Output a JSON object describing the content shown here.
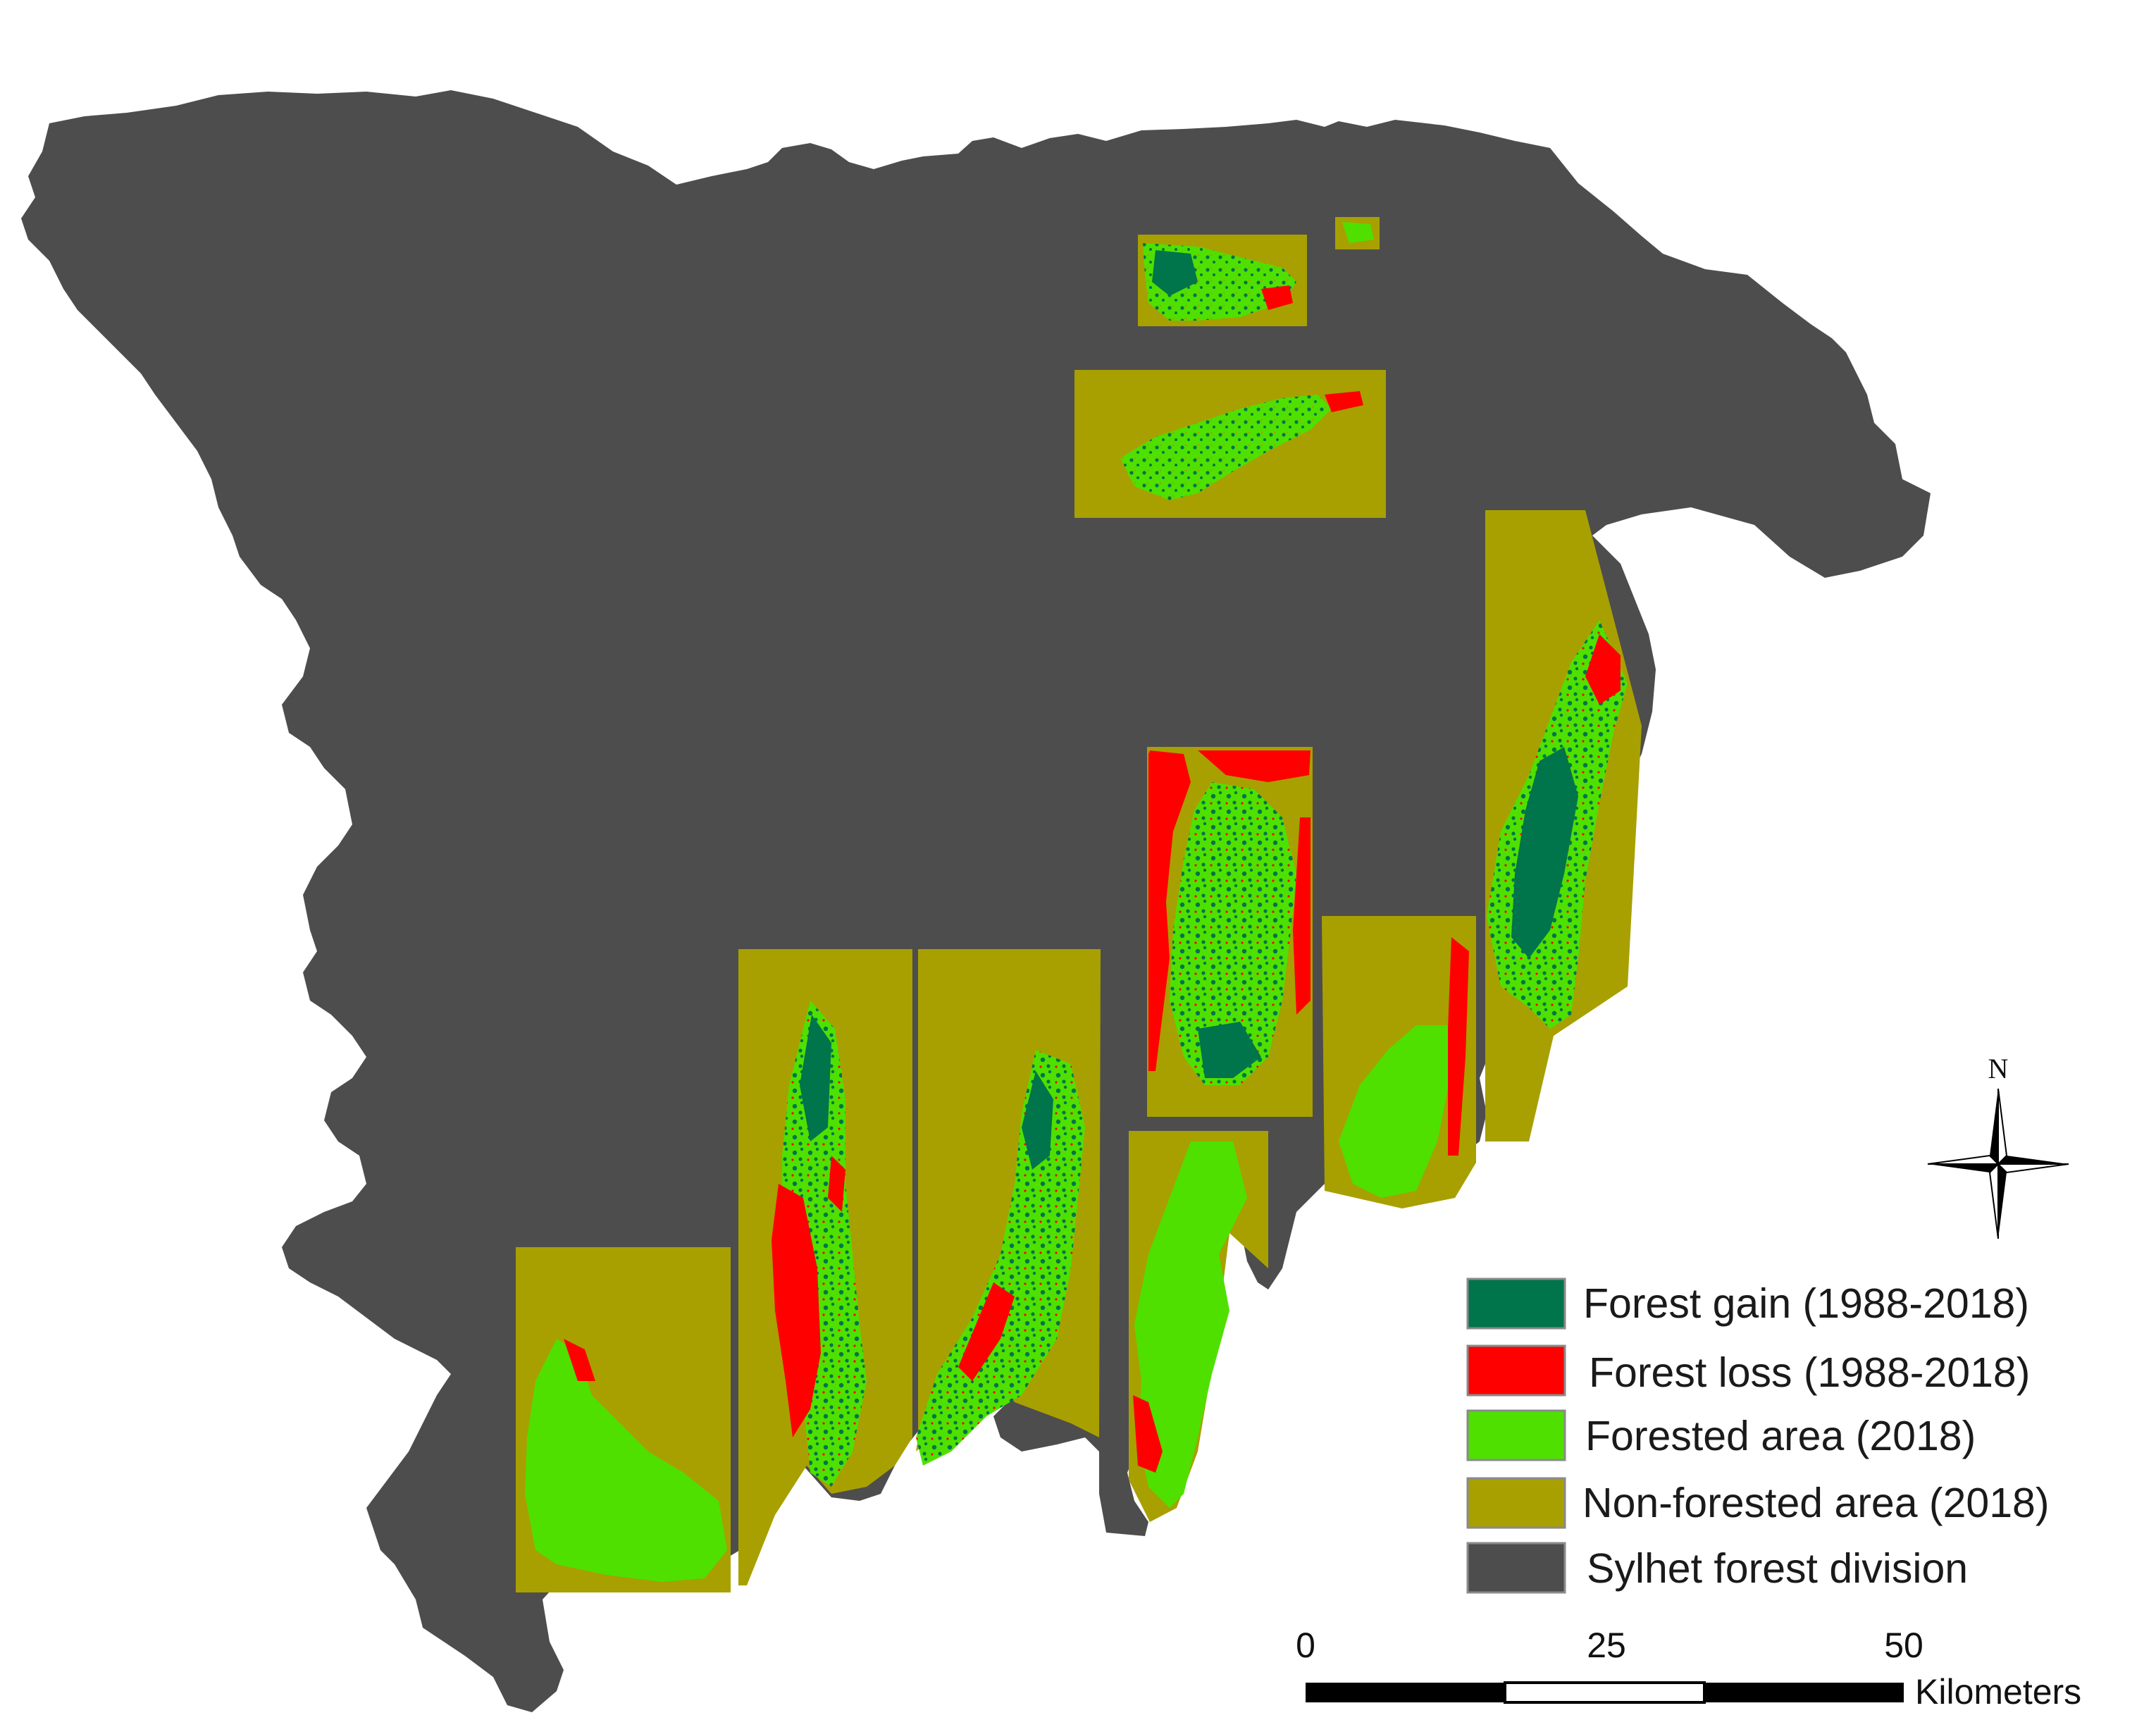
{
  "colors": {
    "forest_gain": "#00744a",
    "forest_loss": "#ff0000",
    "forested_area": "#4fe000",
    "non_forested_area": "#a8a000",
    "sylhet_forest_division": "#4d4d4d",
    "scalebar_dark": "#000000",
    "scalebar_light": "#ffffff"
  },
  "legend": {
    "items": [
      {
        "label": "Forest gain (1988-2018)",
        "color": "#00744a"
      },
      {
        "label": "Forest loss (1988-2018)",
        "color": "#ff0000"
      },
      {
        "label": "Forested area (2018)",
        "color": "#4fe000"
      },
      {
        "label": "Non-forested area (2018)",
        "color": "#a8a000"
      },
      {
        "label": "Sylhet forest division",
        "color": "#4d4d4d"
      }
    ]
  },
  "north_arrow": {
    "label": "N",
    "icon": "compass-rose-icon"
  },
  "scale_bar": {
    "ticks": [
      "0",
      "25",
      "50"
    ],
    "unit": "Kilometers"
  }
}
